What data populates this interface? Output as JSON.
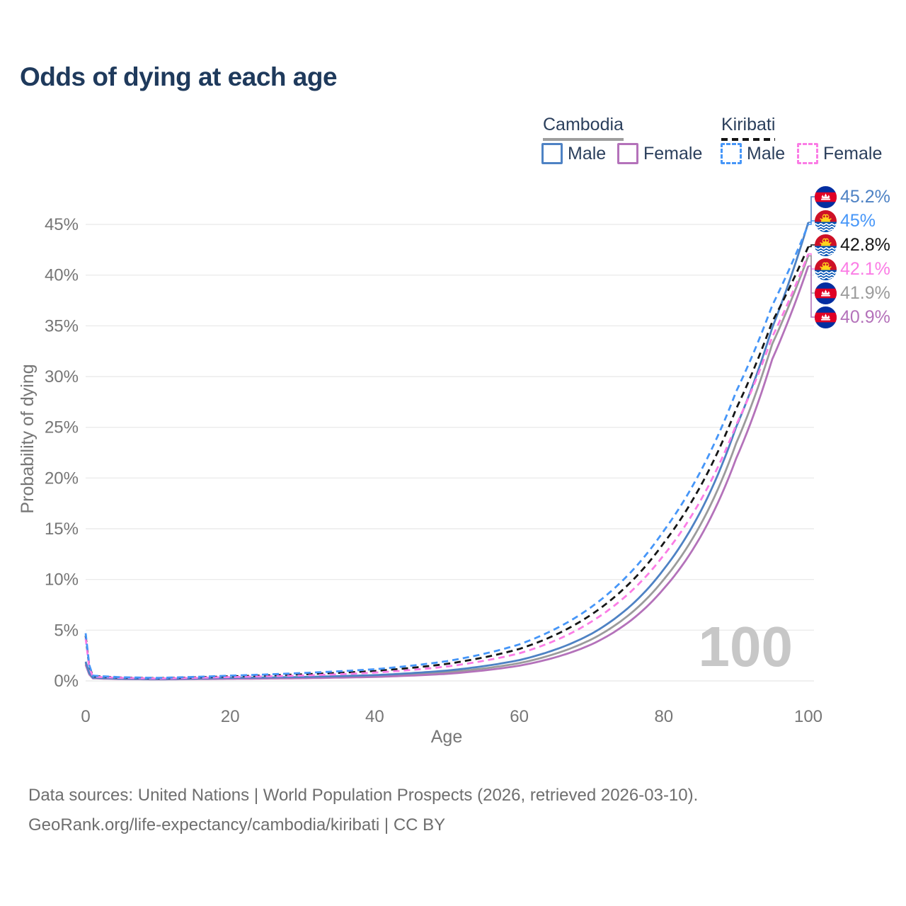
{
  "title": "Odds of dying at each age",
  "legend": {
    "groups": [
      {
        "country": "Cambodia",
        "underline_style": "solid",
        "underline_color": "#9e9e9e",
        "items": [
          {
            "label": "Male",
            "color": "#4e82c4",
            "dash": "solid"
          },
          {
            "label": "Female",
            "color": "#b472ba",
            "dash": "solid"
          }
        ]
      },
      {
        "country": "Kiribati",
        "underline_style": "dashed",
        "underline_color": "#161616",
        "items": [
          {
            "label": "Male",
            "color": "#4696f8",
            "dash": "dashed"
          },
          {
            "label": "Female",
            "color": "#fb7ce5",
            "dash": "dashed"
          }
        ]
      }
    ]
  },
  "watermark": "100",
  "footer": {
    "line1": "Data sources: United Nations | World Population Prospects (2026, retrieved 2026-03-10).",
    "line2": "GeoRank.org/life-expectancy/cambodia/kiribati | CC BY"
  },
  "chart_data": {
    "type": "line",
    "title": "Odds of dying at each age",
    "xlabel": "Age",
    "ylabel": "Probability of dying",
    "xlim": [
      0,
      100
    ],
    "ylim": [
      0,
      47
    ],
    "x_ticks": [
      0,
      20,
      40,
      60,
      80,
      100
    ],
    "y_ticks": [
      "0%",
      "5%",
      "10%",
      "15%",
      "20%",
      "25%",
      "30%",
      "35%",
      "40%",
      "45%"
    ],
    "grid": "horizontal",
    "legend_position": "top-right",
    "series": [
      {
        "name": "Cambodia Total",
        "slug": "cambodia-total",
        "color": "#9b9b9b",
        "dash": "solid",
        "points": [
          [
            0,
            1.75
          ],
          [
            1,
            0.29
          ],
          [
            5,
            0.2
          ],
          [
            10,
            0.165
          ],
          [
            20,
            0.25
          ],
          [
            30,
            0.32
          ],
          [
            40,
            0.47
          ],
          [
            50,
            0.85
          ],
          [
            60,
            1.75
          ],
          [
            70,
            4.1
          ],
          [
            80,
            10.0
          ],
          [
            90,
            23.4
          ],
          [
            95,
            33.2
          ],
          [
            100,
            41.9
          ]
        ]
      },
      {
        "name": "Cambodia Female",
        "slug": "cambodia-female",
        "color": "#b472ba",
        "dash": "solid",
        "points": [
          [
            0,
            1.6
          ],
          [
            1,
            0.26
          ],
          [
            5,
            0.18
          ],
          [
            10,
            0.15
          ],
          [
            20,
            0.21
          ],
          [
            30,
            0.27
          ],
          [
            40,
            0.39
          ],
          [
            50,
            0.7
          ],
          [
            60,
            1.5
          ],
          [
            70,
            3.6
          ],
          [
            80,
            9.1
          ],
          [
            90,
            21.9
          ],
          [
            95,
            31.7
          ],
          [
            100,
            40.9
          ]
        ]
      },
      {
        "name": "Cambodia Male",
        "slug": "cambodia-male",
        "color": "#4e82c4",
        "dash": "solid",
        "points": [
          [
            0,
            1.9
          ],
          [
            1,
            0.32
          ],
          [
            5,
            0.22
          ],
          [
            10,
            0.18
          ],
          [
            20,
            0.3
          ],
          [
            30,
            0.39
          ],
          [
            40,
            0.57
          ],
          [
            50,
            1.02
          ],
          [
            60,
            2.05
          ],
          [
            70,
            4.65
          ],
          [
            80,
            11.0
          ],
          [
            90,
            25.0
          ],
          [
            95,
            34.8
          ],
          [
            100,
            45.2
          ]
        ]
      },
      {
        "name": "Kiribati Total",
        "slug": "kiribati-total",
        "color": "#161616",
        "dash": "dashed",
        "points": [
          [
            0,
            4.45
          ],
          [
            1,
            0.47
          ],
          [
            5,
            0.33
          ],
          [
            10,
            0.27
          ],
          [
            20,
            0.45
          ],
          [
            30,
            0.65
          ],
          [
            40,
            0.98
          ],
          [
            50,
            1.68
          ],
          [
            60,
            3.15
          ],
          [
            70,
            6.55
          ],
          [
            80,
            13.6
          ],
          [
            90,
            26.8
          ],
          [
            95,
            35.4
          ],
          [
            100,
            42.8
          ]
        ]
      },
      {
        "name": "Kiribati Female",
        "slug": "kiribati-female",
        "color": "#fb7ce5",
        "dash": "dashed",
        "points": [
          [
            0,
            4.2
          ],
          [
            1,
            0.42
          ],
          [
            5,
            0.3
          ],
          [
            10,
            0.24
          ],
          [
            20,
            0.38
          ],
          [
            30,
            0.53
          ],
          [
            40,
            0.82
          ],
          [
            50,
            1.42
          ],
          [
            60,
            2.72
          ],
          [
            70,
            5.85
          ],
          [
            80,
            12.4
          ],
          [
            90,
            25.2
          ],
          [
            95,
            33.9
          ],
          [
            100,
            42.1
          ]
        ]
      },
      {
        "name": "Kiribati Male",
        "slug": "kiribati-male",
        "color": "#4696f8",
        "dash": "dashed",
        "points": [
          [
            0,
            4.7
          ],
          [
            1,
            0.52
          ],
          [
            5,
            0.36
          ],
          [
            10,
            0.3
          ],
          [
            20,
            0.52
          ],
          [
            30,
            0.78
          ],
          [
            40,
            1.15
          ],
          [
            50,
            1.95
          ],
          [
            60,
            3.6
          ],
          [
            70,
            7.3
          ],
          [
            80,
            14.8
          ],
          [
            90,
            28.5
          ],
          [
            95,
            37.0
          ],
          [
            100,
            45.0
          ]
        ]
      }
    ],
    "end_labels": [
      {
        "series": "Cambodia Male",
        "value": "45.2%",
        "numeric": 45.2,
        "color": "#4e82c4",
        "flag": "cambodia"
      },
      {
        "series": "Kiribati Male",
        "value": "45%",
        "numeric": 45.0,
        "color": "#4696f8",
        "flag": "kiribati"
      },
      {
        "series": "Kiribati Total",
        "value": "42.8%",
        "numeric": 42.8,
        "color": "#161616",
        "flag": "kiribati"
      },
      {
        "series": "Kiribati Female",
        "value": "42.1%",
        "numeric": 42.1,
        "color": "#fb7ce5",
        "flag": "kiribati"
      },
      {
        "series": "Cambodia Total",
        "value": "41.9%",
        "numeric": 41.9,
        "color": "#9b9b9b",
        "flag": "cambodia"
      },
      {
        "series": "Cambodia Female",
        "value": "40.9%",
        "numeric": 40.9,
        "color": "#b472ba",
        "flag": "cambodia"
      }
    ]
  }
}
